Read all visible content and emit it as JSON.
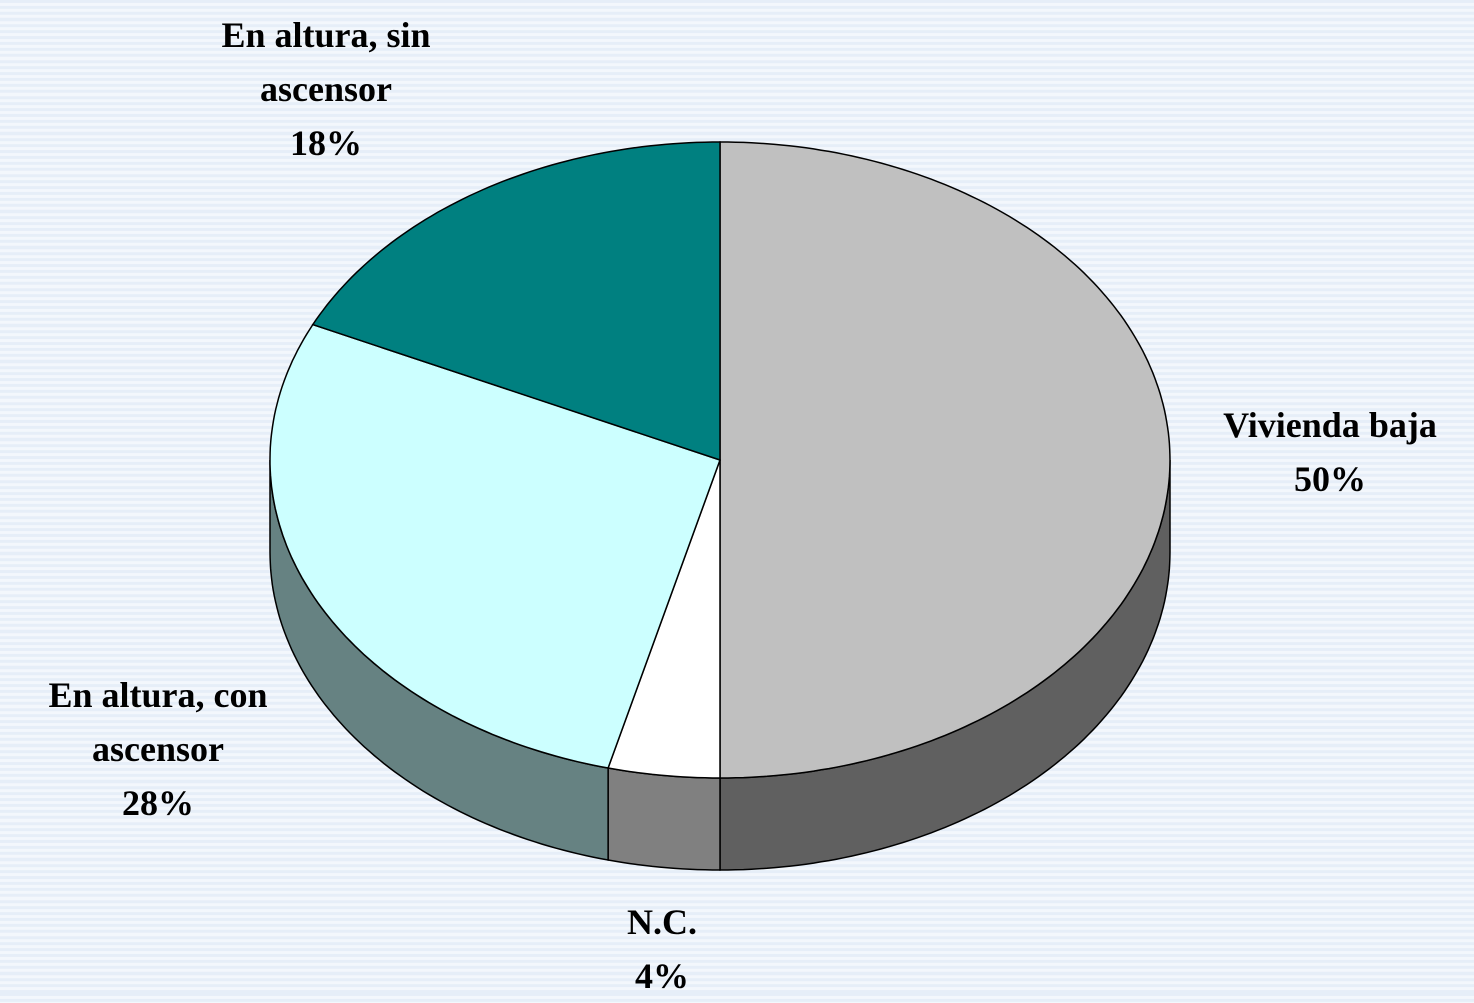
{
  "chart_data": {
    "type": "pie",
    "three_d": true,
    "categories": [
      "Vivienda baja",
      "N.C.",
      "En altura, con ascensor",
      "En altura, sin ascensor"
    ],
    "values": [
      50,
      4,
      28,
      18
    ],
    "value_labels": [
      "50%",
      "4%",
      "28%",
      "18%"
    ],
    "colors": [
      "#c0c0c0",
      "#ffffff",
      "#ccffff",
      "#008080"
    ],
    "side_colors": [
      "#606060",
      "#808080",
      "#668282",
      "#004040"
    ]
  }
}
